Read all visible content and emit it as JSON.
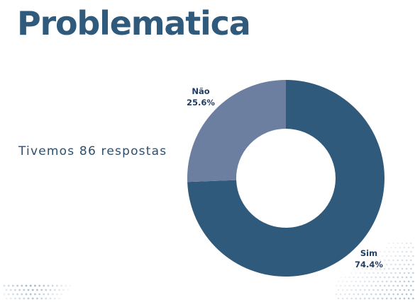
{
  "title": "Problematica",
  "subtitle": "Tivemos 86 respostas",
  "colors": {
    "title": "#2f5a7b",
    "text": "#2e4e6d",
    "dots": "#9fb3c4"
  },
  "chart_data": {
    "type": "pie",
    "donut": true,
    "slices": [
      {
        "label": "Sim",
        "value": 74.4,
        "value_label": "74.4%",
        "color": "#2f5a7b"
      },
      {
        "label": "Não",
        "value": 25.6,
        "value_label": "25.6%",
        "color": "#6d7fa0"
      }
    ],
    "start": "top",
    "direction": "clockwise",
    "legend": "none"
  }
}
